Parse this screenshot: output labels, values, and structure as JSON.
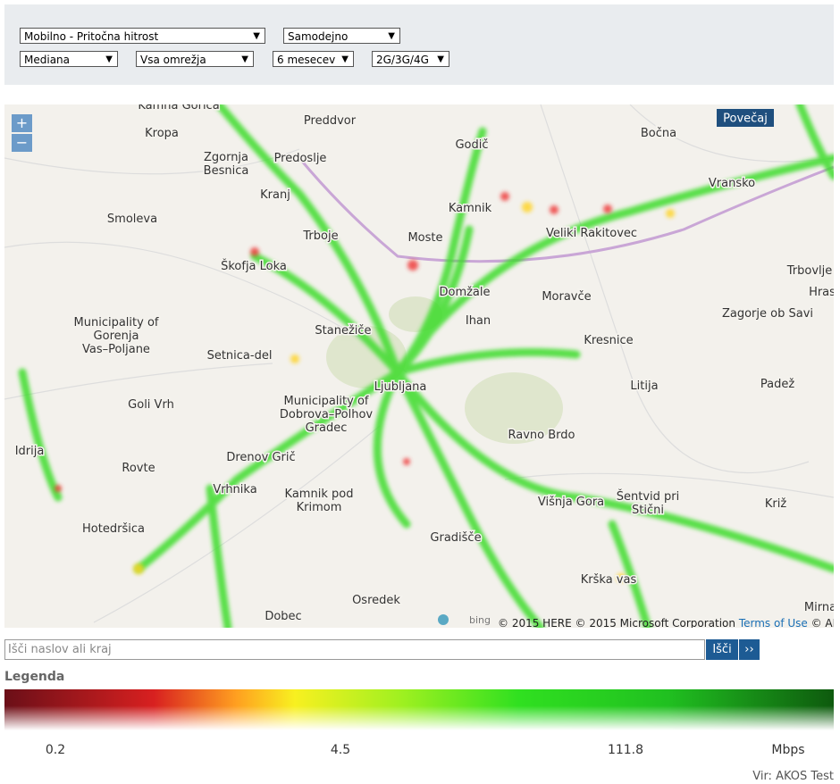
{
  "filters": {
    "measure": "Mobilno - Pritočna hitrost",
    "mode": "Samodejno",
    "statistic": "Mediana",
    "network": "Vsa omrežja",
    "period": "6 mesecev",
    "technology": "2G/3G/4G"
  },
  "map": {
    "zoom_in": "+",
    "zoom_out": "−",
    "enlarge": "Povečaj",
    "labels": [
      [
        "Kamna Gorica"
      ],
      [
        "Preddvor"
      ],
      [
        "Kropa"
      ],
      [
        "Bočna"
      ],
      [
        "Zgornja",
        "Besnica"
      ],
      [
        "Predoslje"
      ],
      [
        "Godič"
      ],
      [
        "Vransko"
      ],
      [
        "Kranj"
      ],
      [
        "Kamnik"
      ],
      [
        "Smoleva"
      ],
      [
        "Trboje"
      ],
      [
        "Moste"
      ],
      [
        "Veliki Rakitovec"
      ],
      [
        "Škofja Loka"
      ],
      [
        "Trbovlje"
      ],
      [
        "Domžale"
      ],
      [
        "Moravče"
      ],
      [
        "Hras"
      ],
      [
        "Zagorje ob Savi"
      ],
      [
        "Municipality of",
        "Gorenja",
        "Vas–Poljane"
      ],
      [
        "Ihan"
      ],
      [
        "Stanežiče"
      ],
      [
        "Kresnice"
      ],
      [
        "Setnica-del"
      ],
      [
        "Ljubljana"
      ],
      [
        "Litija"
      ],
      [
        "Padež"
      ],
      [
        "Goli Vrh"
      ],
      [
        "Municipality of",
        "Dobrova–Polhov",
        "Gradec"
      ],
      [
        "Ravno Brdo"
      ],
      [
        "Idrija"
      ],
      [
        "Rovte"
      ],
      [
        "Drenov Grič"
      ],
      [
        "Vrhnika"
      ],
      [
        "Kamnik pod",
        "Krimom"
      ],
      [
        "Višnja Gora"
      ],
      [
        "Šentvid pri",
        "Stični"
      ],
      [
        "Križ"
      ],
      [
        "Hotedršica"
      ],
      [
        "Gradišče"
      ],
      [
        "Krška vas"
      ],
      [
        "Mirna"
      ],
      [
        "Osredek"
      ],
      [
        "Dobec"
      ]
    ],
    "attribution": {
      "provider": "bing",
      "copyright": "© 2015 HERE © 2015 Microsoft Corporation",
      "terms": "Terms of Use",
      "extra": "© AND"
    }
  },
  "search": {
    "placeholder": "Išči naslov ali kraj",
    "button": "Išči",
    "more": "››"
  },
  "legend": {
    "title": "Legenda",
    "ticks": [
      0.2,
      4.5,
      111.8
    ],
    "unit": "Mbps"
  },
  "source": "Vir: AKOS Test"
}
